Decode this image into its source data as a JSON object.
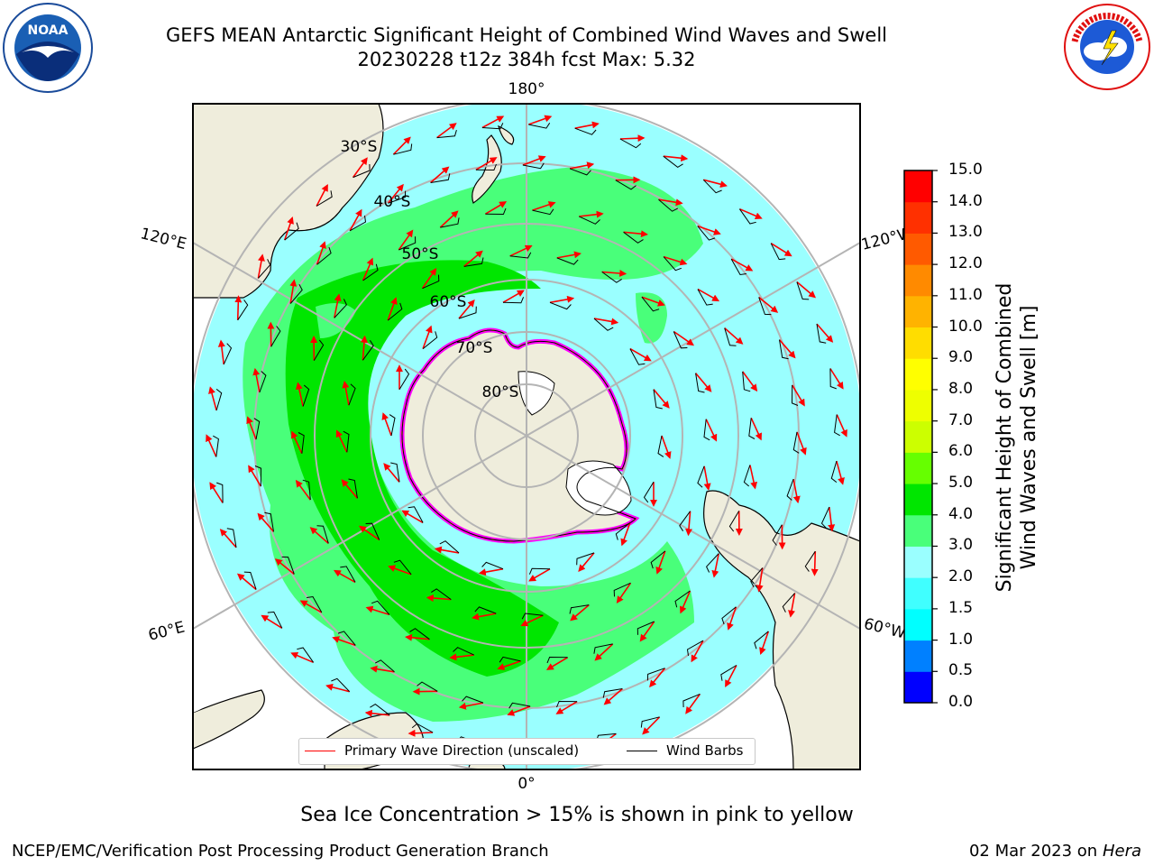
{
  "title": {
    "line1": "GEFS MEAN Antarctic Significant Height of Combined Wind Waves and Swell",
    "line2": "20230228 t12z 384h fcst   Max: 5.32"
  },
  "logos": {
    "left": {
      "icon": "noaa-logo",
      "text": "NOAA",
      "ring_text": "NATIONAL OCEANIC AND ATMOSPHERIC ADMINISTRATION · U.S. DEPARTMENT OF COMMERCE"
    },
    "right": {
      "icon": "nws-logo",
      "ring_text": "NATIONAL WEATHER SERVICE"
    }
  },
  "map": {
    "projection": "south-polar-stereographic",
    "lon_labels": {
      "top": "180°",
      "upper_left": "120°E",
      "upper_right": "120°W",
      "lower_left": "60°E",
      "lower_right": "60°W",
      "bottom": "0°"
    },
    "lat_labels": [
      "30°S",
      "40°S",
      "50°S",
      "60°S",
      "70°S",
      "80°S"
    ],
    "colors": {
      "ocean_low": "#9affff",
      "ocean_mid": "#49ff7a",
      "ocean_high": "#00e600",
      "land": "#efeddc",
      "ice_edge": "#ff00ff",
      "arrow": "#ff0000",
      "barb": "#000000"
    }
  },
  "colorbar": {
    "label_line1": "Significant Height of Combined",
    "label_line2": "Wind Waves and Swell [m]",
    "ticks": [
      "0.0",
      "0.5",
      "1.0",
      "1.5",
      "2.0",
      "3.0",
      "4.0",
      "5.0",
      "6.0",
      "7.0",
      "8.0",
      "9.0",
      "10.0",
      "11.0",
      "12.0",
      "13.0",
      "14.0",
      "15.0"
    ],
    "colors": [
      "#0000ff",
      "#0080ff",
      "#00ffff",
      "#40ffff",
      "#9affff",
      "#49ff7a",
      "#00e600",
      "#66ff00",
      "#ccff00",
      "#eeff00",
      "#ffff00",
      "#ffdd00",
      "#ffb300",
      "#ff8a00",
      "#ff5a00",
      "#ff3000",
      "#ff0000"
    ]
  },
  "legend": {
    "wave_label": "Primary Wave Direction (unscaled)",
    "barb_label": "Wind Barbs"
  },
  "caption": "Sea Ice Concentration > 15% is shown in pink to yellow",
  "footer": {
    "left": "NCEP/EMC/Verification Post Processing Product Generation Branch",
    "right_date": "02 Mar 2023 on",
    "right_machine": "Hera"
  }
}
